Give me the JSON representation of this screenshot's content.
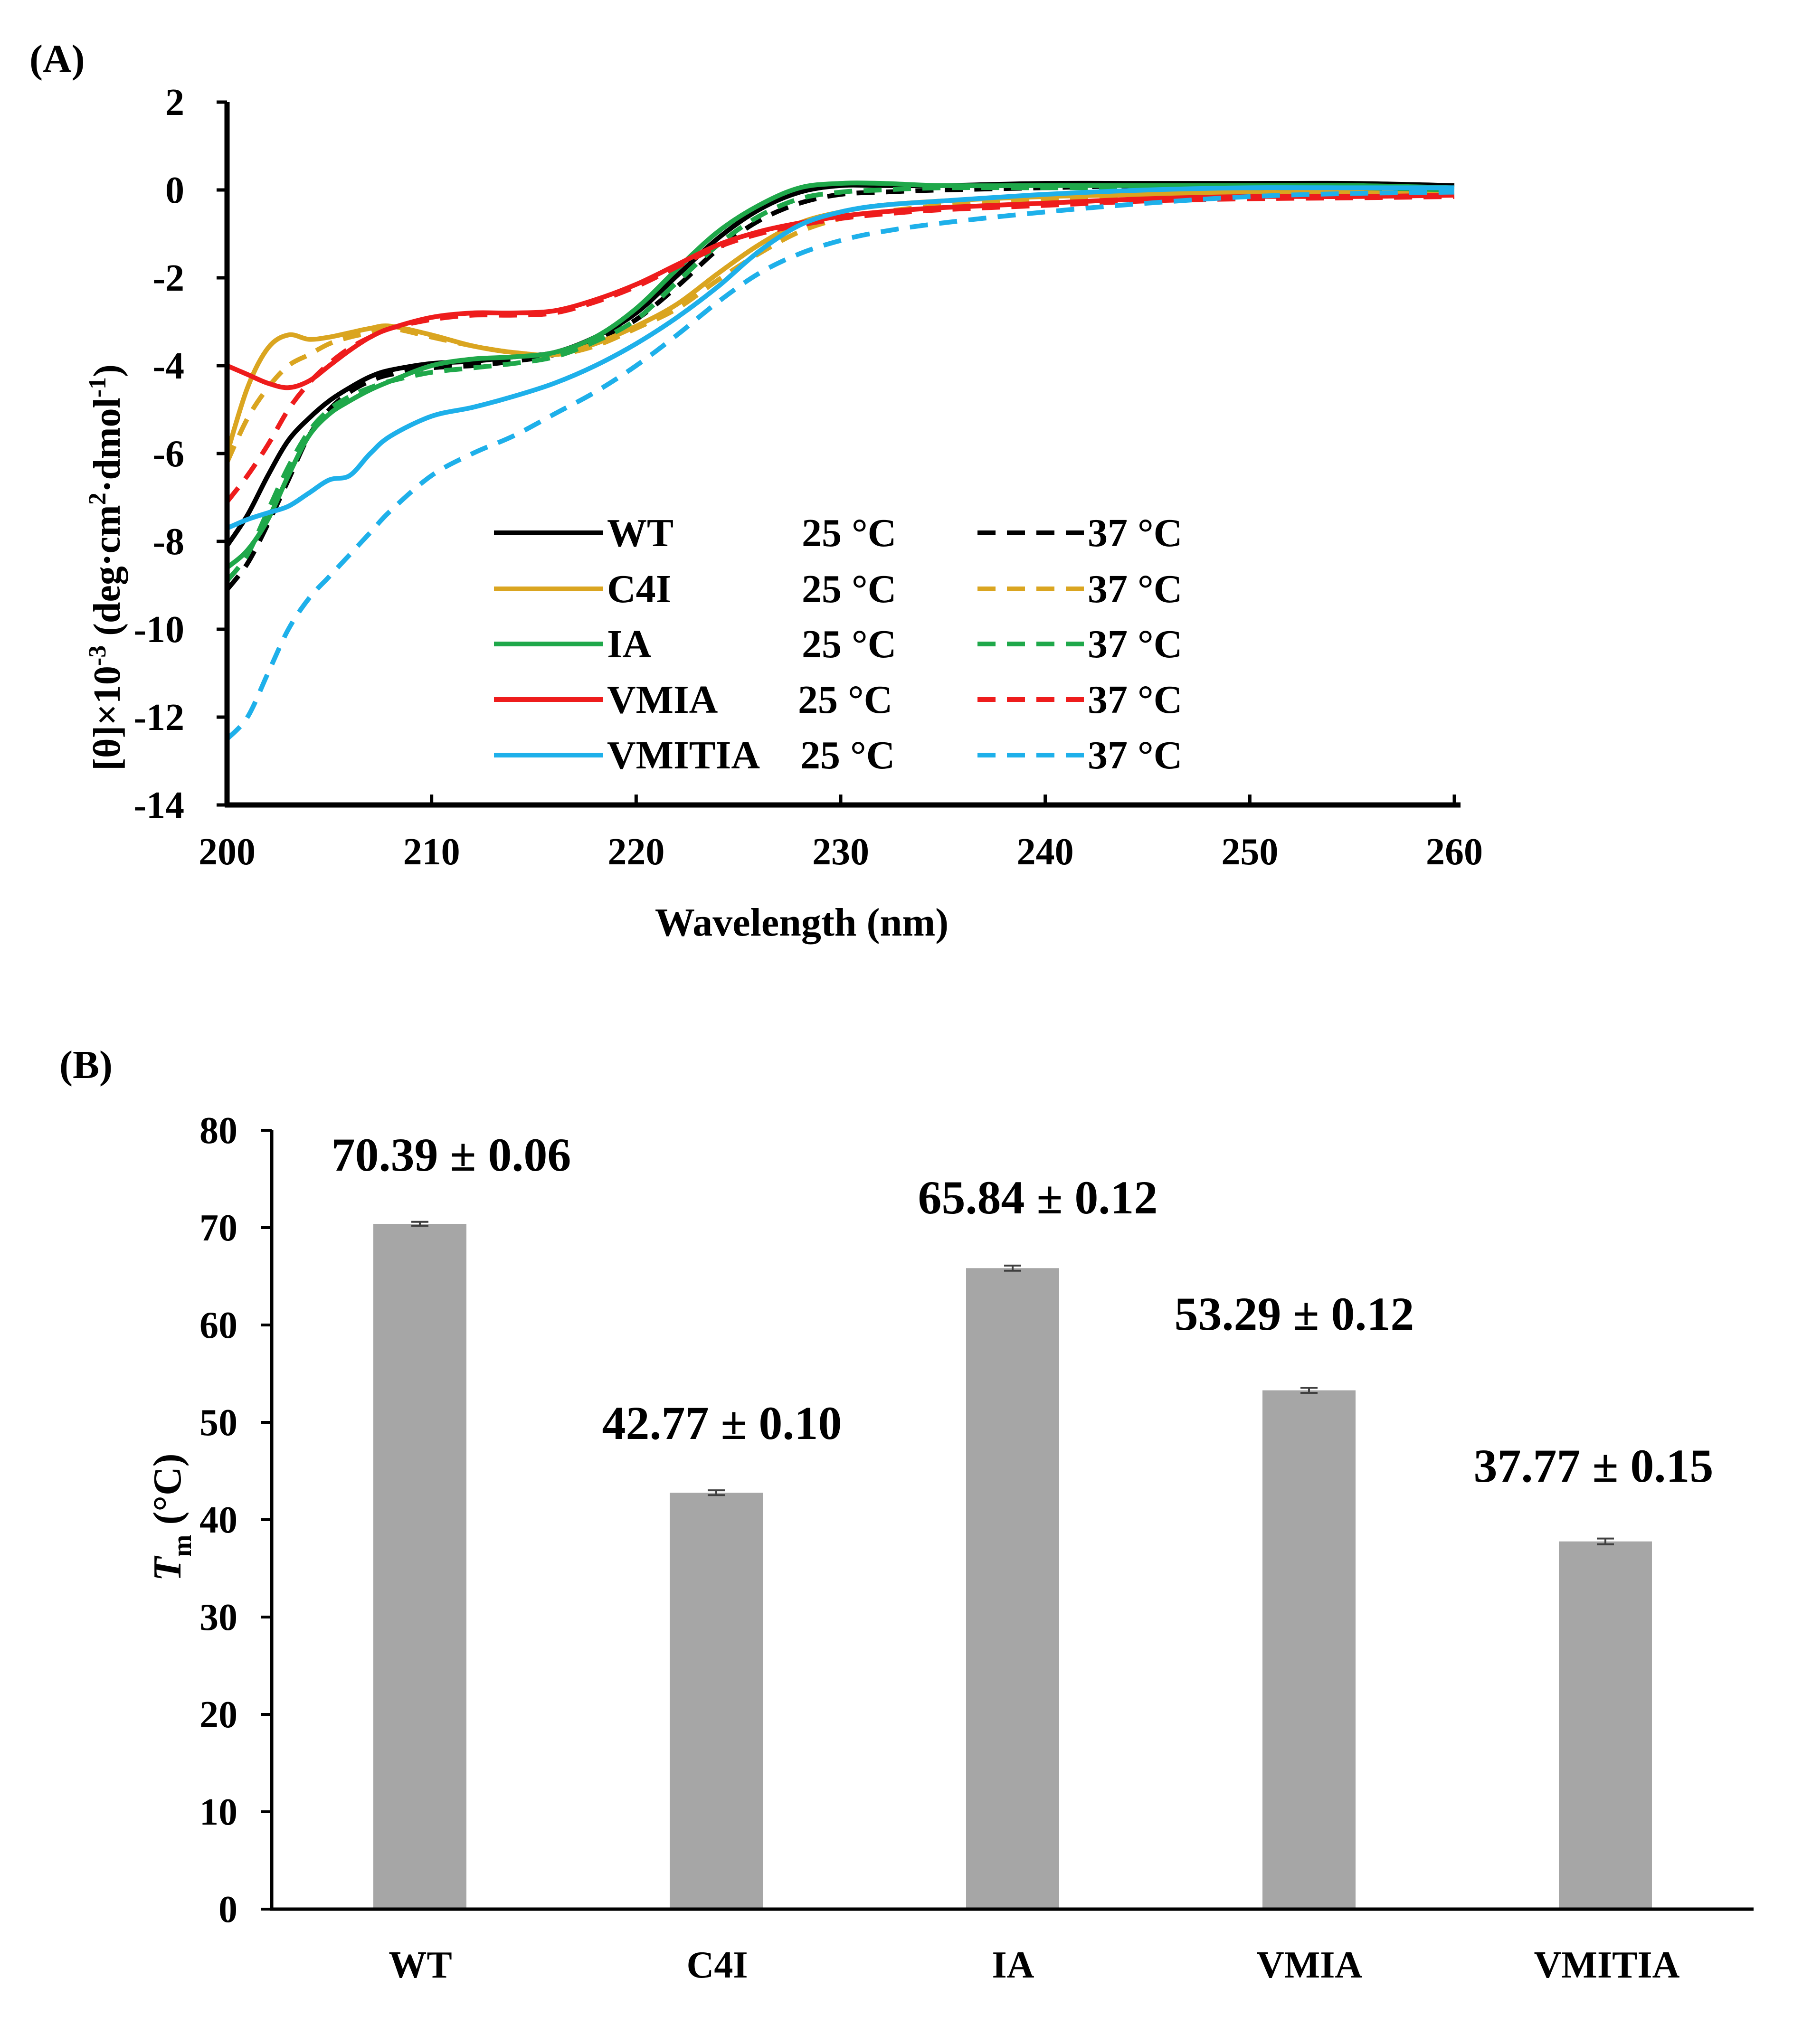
{
  "panel_a": {
    "label": "(A)",
    "chart_data": {
      "type": "line",
      "title": "",
      "xlabel": "Wavelength (nm)",
      "ylabel": "[θ]×10-3 (deg·cm2·dmol-1)",
      "ylabel_parts": {
        "main": "[θ]×10",
        "exp1": "-3",
        "unit": " (deg·cm",
        "exp2": "2",
        "mid": "·dmol",
        "exp3": "-1",
        "end": ")"
      },
      "xlim": [
        200,
        260
      ],
      "ylim": [
        -14,
        2
      ],
      "x_ticks": [
        "200",
        "210",
        "220",
        "230",
        "240",
        "250",
        "260"
      ],
      "y_ticks": [
        "2",
        "0",
        "-2",
        "-4",
        "-6",
        "-8",
        "-10",
        "-12",
        "-14"
      ],
      "legend_position": "center",
      "legend": [
        {
          "name": "WT",
          "temp25": "25 °C",
          "temp37": "37 °C",
          "color": "#000000"
        },
        {
          "name": "C4I",
          "temp25": "25 °C",
          "temp37": "37 °C",
          "color": "#DAA520"
        },
        {
          "name": "IA",
          "temp25": "25 °C",
          "temp37": "37 °C",
          "color": "#1FA84A"
        },
        {
          "name": "VMIA",
          "temp25": "25 °C",
          "temp37": "37 °C",
          "color": "#EE1C1C"
        },
        {
          "name": "VMITIA",
          "temp25": "25 °C",
          "temp37": "37 °C",
          "color": "#1EB0EA"
        }
      ],
      "x": [
        200,
        201,
        202,
        203,
        204,
        205,
        206,
        207,
        208,
        210,
        212,
        214,
        216,
        218,
        220,
        222,
        224,
        226,
        228,
        230,
        232,
        235,
        240,
        245,
        250,
        255,
        260
      ],
      "series": [
        {
          "name": "WT 25 °C",
          "color": "#000000",
          "dash": false,
          "values": [
            -8.1,
            -7.4,
            -6.5,
            -5.7,
            -5.2,
            -4.8,
            -4.5,
            -4.25,
            -4.1,
            -3.95,
            -3.9,
            -3.8,
            -3.7,
            -3.35,
            -2.8,
            -1.95,
            -1.1,
            -0.45,
            -0.05,
            0.1,
            0.1,
            0.1,
            0.15,
            0.15,
            0.15,
            0.15,
            0.1
          ]
        },
        {
          "name": "WT 37 °C",
          "color": "#000000",
          "dash": true,
          "values": [
            -9.1,
            -8.5,
            -7.6,
            -6.6,
            -5.6,
            -5.0,
            -4.6,
            -4.35,
            -4.2,
            -4.05,
            -4.0,
            -3.9,
            -3.75,
            -3.45,
            -2.95,
            -2.2,
            -1.35,
            -0.7,
            -0.3,
            -0.1,
            -0.05,
            0.0,
            0.05,
            0.1,
            0.1,
            0.1,
            0.05
          ]
        },
        {
          "name": "C4I 25 °C",
          "color": "#DAA520",
          "dash": false,
          "values": [
            -6.0,
            -4.5,
            -3.6,
            -3.3,
            -3.4,
            -3.35,
            -3.25,
            -3.15,
            -3.1,
            -3.3,
            -3.55,
            -3.7,
            -3.75,
            -3.5,
            -3.1,
            -2.6,
            -1.9,
            -1.25,
            -0.75,
            -0.5,
            -0.35,
            -0.25,
            -0.15,
            -0.1,
            -0.05,
            -0.05,
            -0.05
          ]
        },
        {
          "name": "C4I 37 °C",
          "color": "#DAA520",
          "dash": true,
          "values": [
            -6.2,
            -5.2,
            -4.5,
            -4.0,
            -3.75,
            -3.5,
            -3.35,
            -3.25,
            -3.15,
            -3.35,
            -3.55,
            -3.7,
            -3.75,
            -3.55,
            -3.15,
            -2.7,
            -2.05,
            -1.45,
            -0.95,
            -0.65,
            -0.5,
            -0.35,
            -0.2,
            -0.12,
            -0.08,
            -0.06,
            -0.05
          ]
        },
        {
          "name": "IA 25 °C",
          "color": "#1FA84A",
          "dash": false,
          "values": [
            -8.6,
            -8.2,
            -7.5,
            -6.5,
            -5.6,
            -5.1,
            -4.8,
            -4.55,
            -4.35,
            -4.0,
            -3.85,
            -3.8,
            -3.7,
            -3.35,
            -2.7,
            -1.8,
            -0.95,
            -0.35,
            0.05,
            0.15,
            0.15,
            0.1,
            0.1,
            0.1,
            0.1,
            0.1,
            0.05
          ]
        },
        {
          "name": "IA 37 °C",
          "color": "#1FA84A",
          "dash": true,
          "values": [
            -8.9,
            -8.3,
            -7.3,
            -6.3,
            -5.5,
            -5.0,
            -4.7,
            -4.5,
            -4.35,
            -4.15,
            -4.05,
            -3.95,
            -3.8,
            -3.45,
            -2.95,
            -2.1,
            -1.25,
            -0.6,
            -0.2,
            -0.05,
            0.0,
            0.05,
            0.05,
            0.05,
            0.05,
            0.05,
            0.0
          ]
        },
        {
          "name": "VMIA 25 °C",
          "color": "#EE1C1C",
          "dash": false,
          "values": [
            -4.0,
            -4.2,
            -4.4,
            -4.5,
            -4.35,
            -4.0,
            -3.65,
            -3.35,
            -3.15,
            -2.9,
            -2.8,
            -2.8,
            -2.75,
            -2.5,
            -2.15,
            -1.7,
            -1.25,
            -0.95,
            -0.75,
            -0.6,
            -0.5,
            -0.4,
            -0.3,
            -0.2,
            -0.15,
            -0.15,
            -0.12
          ]
        },
        {
          "name": "VMIA 37 °C",
          "color": "#EE1C1C",
          "dash": true,
          "values": [
            -7.1,
            -6.5,
            -5.8,
            -5.0,
            -4.4,
            -3.95,
            -3.6,
            -3.35,
            -3.15,
            -2.95,
            -2.85,
            -2.85,
            -2.8,
            -2.55,
            -2.2,
            -1.75,
            -1.3,
            -1.0,
            -0.8,
            -0.65,
            -0.55,
            -0.45,
            -0.35,
            -0.25,
            -0.2,
            -0.18,
            -0.15
          ]
        },
        {
          "name": "VMITIA 25 °C",
          "color": "#1EB0EA",
          "dash": false,
          "values": [
            -7.7,
            -7.5,
            -7.35,
            -7.2,
            -6.9,
            -6.6,
            -6.5,
            -6.0,
            -5.6,
            -5.15,
            -4.95,
            -4.7,
            -4.4,
            -4.0,
            -3.5,
            -2.9,
            -2.2,
            -1.4,
            -0.8,
            -0.5,
            -0.35,
            -0.25,
            -0.1,
            0.0,
            0.05,
            0.05,
            0.05
          ]
        },
        {
          "name": "VMITIA 37 °C",
          "color": "#1EB0EA",
          "dash": true,
          "values": [
            -12.5,
            -12.0,
            -11.0,
            -10.0,
            -9.3,
            -8.8,
            -8.3,
            -7.8,
            -7.3,
            -6.5,
            -6.0,
            -5.6,
            -5.1,
            -4.6,
            -4.0,
            -3.3,
            -2.55,
            -1.9,
            -1.45,
            -1.15,
            -0.95,
            -0.75,
            -0.5,
            -0.3,
            -0.15,
            -0.08,
            -0.05
          ]
        }
      ]
    }
  },
  "panel_b": {
    "label": "(B)",
    "chart_data": {
      "type": "bar",
      "title": "",
      "xlabel": "",
      "ylabel": "Tm (°C)",
      "ylabel_parts": {
        "main": "T",
        "sub": "m",
        "unit": " (°C)"
      },
      "ylim": [
        0,
        80
      ],
      "y_ticks": [
        "80",
        "70",
        "60",
        "50",
        "40",
        "30",
        "20",
        "10",
        "0"
      ],
      "categories": [
        "WT",
        "C4I",
        "IA",
        "VMIA",
        "VMITIA"
      ],
      "values": [
        70.39,
        42.77,
        65.84,
        53.29,
        37.77
      ],
      "errors": [
        0.06,
        0.1,
        0.12,
        0.12,
        0.15
      ],
      "value_labels": [
        "70.39 ± 0.06",
        "42.77 ± 0.10",
        "65.84 ± 0.12",
        "53.29 ± 0.12",
        "37.77 ± 0.15"
      ],
      "bar_color": "#A6A6A6"
    }
  }
}
